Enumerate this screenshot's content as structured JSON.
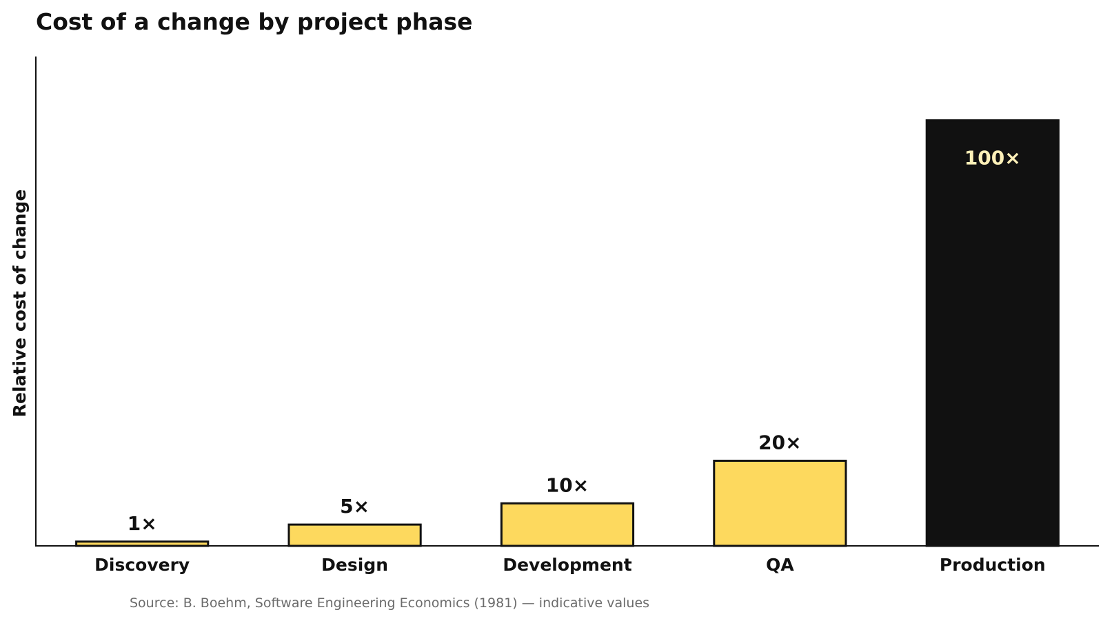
{
  "chart_data": {
    "type": "bar",
    "title": "Cost of a change by project phase",
    "xlabel": "",
    "ylabel": "Relative cost of change",
    "categories": [
      "Discovery",
      "Design",
      "Development",
      "QA",
      "Production"
    ],
    "values": [
      1,
      5,
      10,
      20,
      100
    ],
    "data_labels": [
      "1×",
      "5×",
      "10×",
      "20×",
      "100×"
    ],
    "ylim": [
      0,
      115
    ],
    "grid": false,
    "y_ticks_shown": false,
    "highlight_category": "Production",
    "source_note": "Source: B. Boehm, Software Engineering Economics (1981) — indicative values"
  },
  "colors": {
    "bar_fill": "#FDD95E",
    "bar_outline": "#111111",
    "highlight_fill": "#111111",
    "highlight_label": "#FDF0B8",
    "text": "#111111",
    "source_text": "#6B6B6B"
  }
}
